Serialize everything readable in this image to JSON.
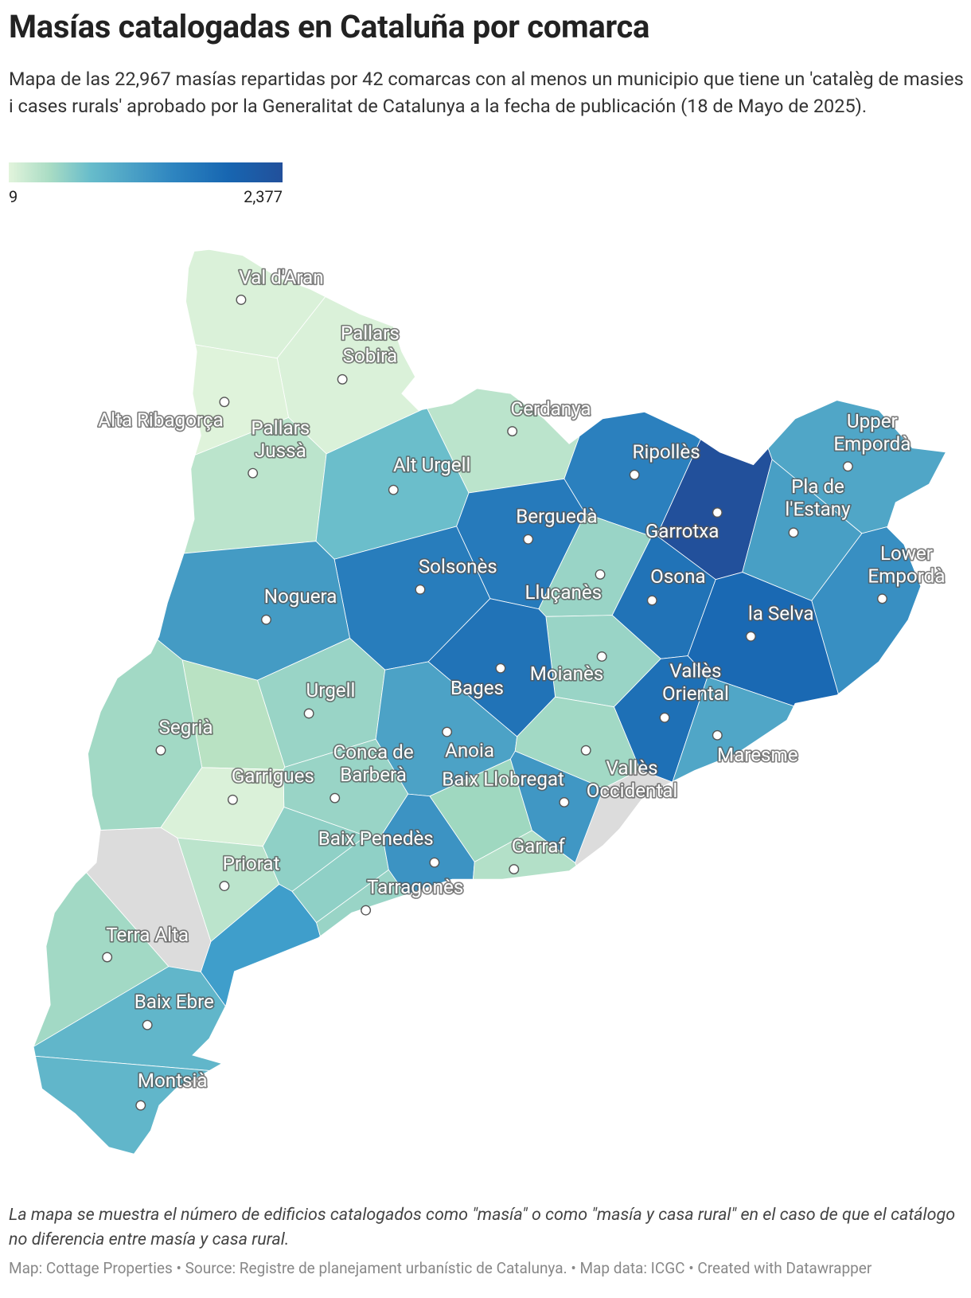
{
  "title": "Masías catalogadas en Cataluña por comarca",
  "subtitle": "Mapa de las 22,967 masías repartidas por 42 comarcas con al menos un municipio que tiene un 'catalèg de masies i cases rurals' aprobado por la Generalitat de Catalunya a la fecha de publicación (18 de Mayo de 2025).",
  "legend": {
    "min": 9,
    "max": {
      "value": 2377,
      "label": "2,377"
    }
  },
  "regions": {
    "names": [
      "Val d'Aran",
      "Pallars Sobirà",
      "Alta Ribagorça",
      "Pallars Jussà",
      "Cerdanya",
      "Alt Urgell",
      "Ripollès",
      "Upper Empordà",
      "Garrotxa",
      "Pla de l'Estany",
      "Berguedà",
      "Solsonès",
      "Lluçanès",
      "Osona",
      "Lower Empordà",
      "Noguera",
      "la Selva",
      "Moianès",
      "Bages",
      "Urgell",
      "Vallès Oriental",
      "Maresme",
      "Anoia",
      "Segrià",
      "Vallès Occidental",
      "Conca de Barberà",
      "Garrigues",
      "Baix Llobregat",
      "Baix Penedès",
      "Garraf",
      "Priorat",
      "Tarragonès",
      "Terra Alta",
      "Baix Ebre",
      "Montsià"
    ],
    "values": [
      60,
      60,
      30,
      250,
      250,
      700,
      1500,
      1000,
      2377,
      1100,
      1600,
      1550,
      450,
      1700,
      1300,
      1150,
      1850,
      450,
      1700,
      450,
      1750,
      1000,
      1050,
      400,
      400,
      450,
      60,
      1200,
      1250,
      300,
      250,
      450,
      400,
      800,
      800
    ]
  },
  "note": "La mapa se muestra el número de edificios catalogados como \"masía\" o como \"masía y casa rural\" en el caso de que el catálogo no diferencia entre masía y casa rural.",
  "footer": "Map: Cottage Properties • Source: Registre de planejament urbanístic de Catalunya. • Map data: ICGC  • Created with Datawrapper"
}
